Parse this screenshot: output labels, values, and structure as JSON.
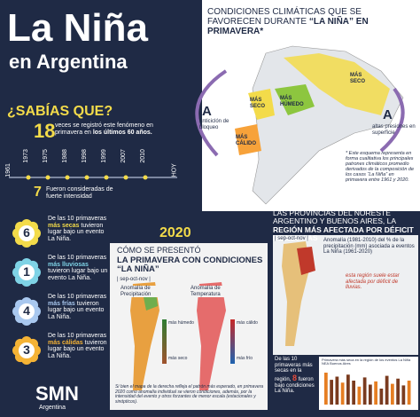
{
  "header": {
    "title": "La Niña",
    "subtitle": "en Argentina"
  },
  "facts": {
    "heading": "¿SABÍAS QUE?",
    "count": "18",
    "text_pre": "veces se registró este fenómeno en primavera en",
    "text_bold": "los últimos 60 años.",
    "timeline": {
      "start": "1961",
      "end": "HOY",
      "years": [
        "1973",
        "1975",
        "1988",
        "1998",
        "1999",
        "2007",
        "2010"
      ]
    },
    "strong_count": "7",
    "strong_text": "Fueron consideradas de fuerte intensidad"
  },
  "seasons": [
    {
      "number": "6",
      "pre": "De las 10 primaveras",
      "key": "más secas",
      "post": "tuvieron lugar bajo un evento La Niña."
    },
    {
      "number": "1",
      "pre": "De las 10 primaveras",
      "key": "más lluviosas",
      "post": "tuvieron lugar bajo un evento La Niña."
    },
    {
      "number": "4",
      "pre": "De las 10 primaveras",
      "key": "más frías",
      "post": "tuvieron lugar bajo un evento La Niña."
    },
    {
      "number": "3",
      "pre": "De las 10 primaveras",
      "key": "más cálidas",
      "post": "tuvieron lugar bajo un evento La Niña."
    }
  ],
  "logo": {
    "name": "SMN",
    "country": "Argentina"
  },
  "conditions": {
    "title_pre": "CONDICIONES CLIMÁTICAS QUE SE FAVORECEN DURANTE",
    "title_bold": "“LA NIÑA” EN PRIMAVERA*",
    "labels": [
      "MÁS SECO",
      "MÁS SECO",
      "MÁS HÚMEDO",
      "MÁS CÁLIDO"
    ],
    "high1": {
      "letter": "A",
      "text": "anticiclón de bloqueo"
    },
    "high2": {
      "letter": "A",
      "text": "altas presiones en superficie"
    },
    "note": "* Este esquema representa en forma cualitativa los principales patrones climáticos promedio derivados de la composición de los casos “La Niña” en primavera entre 1961 y 2020."
  },
  "spring2020": {
    "year": "2020",
    "lead": "CÓMO SE PRESENTÓ",
    "heading": "LA PRIMAVERA CON CONDICIONES “LA NIÑA”",
    "period": "| sep-oct-nov |",
    "map1": {
      "title": "Anomalía de Precipitación",
      "top": "más húmedo",
      "bottom": "más seco"
    },
    "map2": {
      "title": "Anomalía de Temperatura",
      "top": "más cálido",
      "bottom": "más frío"
    },
    "note": "Si bien el mapa de la derecha refleja el patrón más esperado, en primavera 2020 como anomalía individual se vieron condiciones, además, por la intensidad del evento y otros forzantes de menor escala (estacionales y sinópticos)."
  },
  "provinces": {
    "title_pre": "LAS PROVINCIAS DEL NORESTE ARGENTINO Y BUENOS AIRES, LA",
    "title_bold": "REGIÓN MÁS AFECTADA POR DÉFICIT DE LLUVIAS",
    "period": "| sep-oct-nov |",
    "legend": "Anomalía (1981-2010) del % de la precipitación (mm) asociada a eventos La Niña (1961-2020)",
    "region_note": "esta región suele estar afectada por déficit de lluvias.",
    "stat_pre": "De las 10 primaveras más secas en la región,",
    "stat_count": "8",
    "stat_post": "fueron bajo condiciones La Niña.",
    "chart": {
      "title": "Primavera más seca en la región de los eventos La Niña NEA Buenos Aires",
      "values": [
        80,
        62,
        70,
        55,
        75,
        60,
        45,
        68,
        50,
        58,
        40,
        72,
        52,
        65,
        48,
        60
      ]
    }
  }
}
